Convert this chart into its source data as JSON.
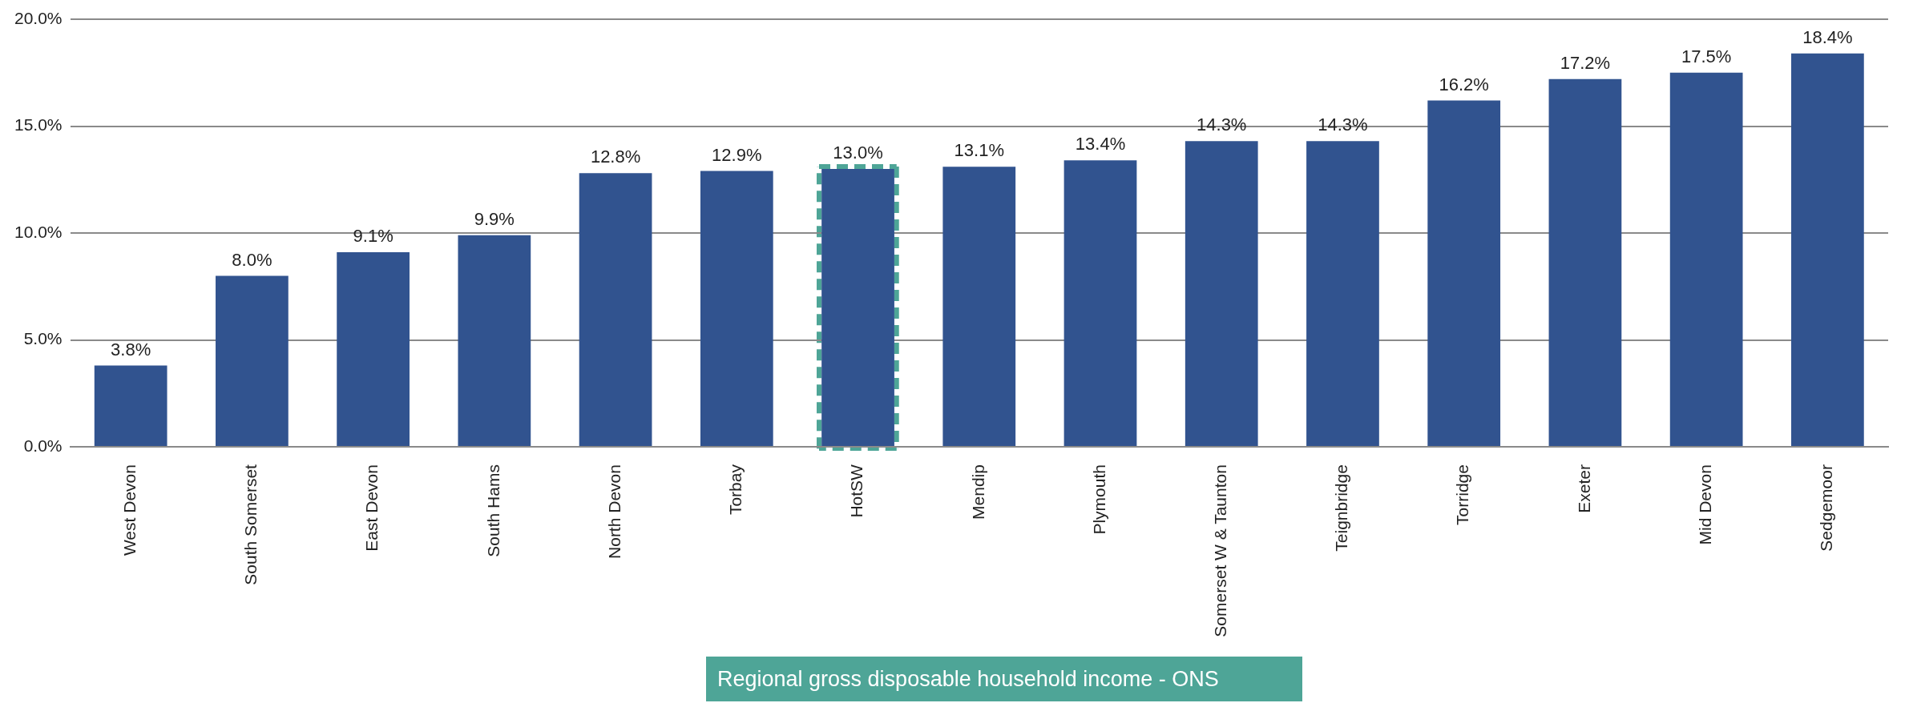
{
  "chart_data": {
    "type": "bar",
    "categories": [
      "West Devon",
      "South Somerset",
      "East Devon",
      "South Hams",
      "North Devon",
      "Torbay",
      "HotSW",
      "Mendip",
      "Plymouth",
      "Somerset W & Taunton",
      "Teignbridge",
      "Torridge",
      "Exeter",
      "Mid Devon",
      "Sedgemoor"
    ],
    "values": [
      3.8,
      8.0,
      9.1,
      9.9,
      12.8,
      12.9,
      13.0,
      13.1,
      13.4,
      14.3,
      14.3,
      16.2,
      17.2,
      17.5,
      18.4
    ],
    "value_labels": [
      "3.8%",
      "8.0%",
      "9.1%",
      "9.9%",
      "12.8%",
      "12.9%",
      "13.0%",
      "13.1%",
      "13.4%",
      "14.3%",
      "14.3%",
      "16.2%",
      "17.2%",
      "17.5%",
      "18.4%"
    ],
    "color": "#31538f",
    "ylim": [
      0,
      20
    ],
    "yticks": [
      {
        "value": 0,
        "label": "0.0%"
      },
      {
        "value": 5,
        "label": "5.0%"
      },
      {
        "value": 10,
        "label": "10.0%"
      },
      {
        "value": 15,
        "label": "15.0%"
      },
      {
        "value": 20,
        "label": "20.0%"
      }
    ],
    "grid": "y",
    "legend": false,
    "annotations": [
      "Regional gross disposable household income - ONS"
    ]
  }
}
